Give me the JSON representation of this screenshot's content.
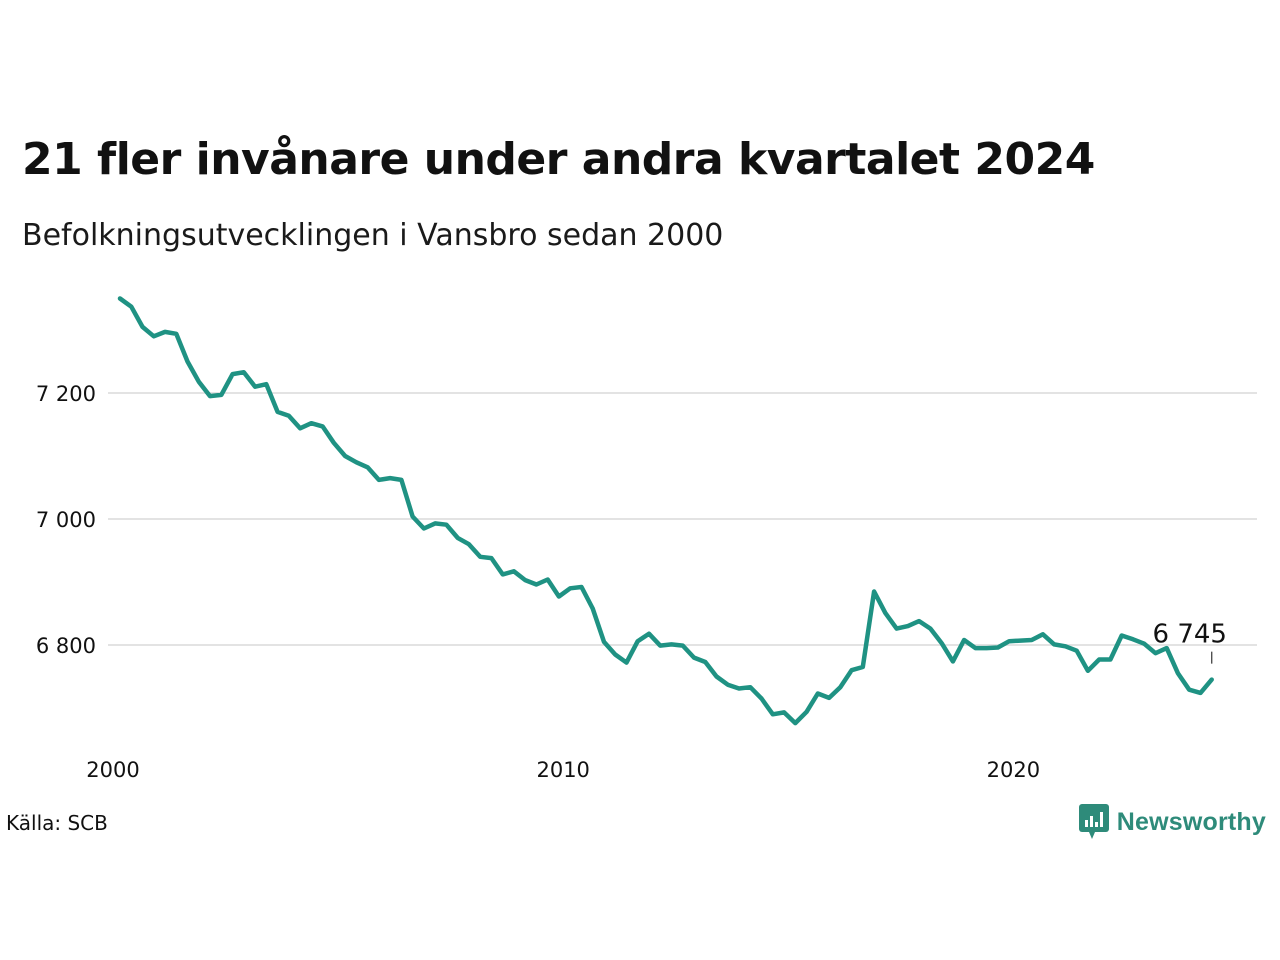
{
  "title": "21 fler invånare under andra kvartalet 2024",
  "subtitle": "Befolkningsutvecklingen i Vansbro sedan 2000",
  "source": "Källa: SCB",
  "brand": {
    "name": "Newsworthy",
    "icon": "newsworthy-logo-icon"
  },
  "colors": {
    "line": "#1f9283",
    "grid": "#e3e3e3",
    "text": "#111111",
    "brand": "#2e8b7a"
  },
  "chart_data": {
    "type": "line",
    "title": "21 fler invånare under andra kvartalet 2024",
    "subtitle": "Befolkningsutvecklingen i Vansbro sedan 2000",
    "xlabel": "",
    "ylabel": "",
    "x_ticks": [
      2000,
      2010,
      2020
    ],
    "x_tick_labels": [
      "2000",
      "2010",
      "2020"
    ],
    "y_ticks": [
      6800,
      7000,
      7200
    ],
    "y_tick_labels": [
      "6 800",
      "7 000",
      "7 200"
    ],
    "xlim": [
      2000.0,
      2024.5
    ],
    "ylim": [
      6650,
      7350
    ],
    "grid": true,
    "annotation": {
      "x": 2024.25,
      "y": 6745,
      "label": "6 745"
    },
    "series": [
      {
        "x": [
          2000.0,
          2000.25,
          2000.5,
          2000.75,
          2001.0,
          2001.25,
          2001.5,
          2001.75,
          2002.0,
          2002.25,
          2002.5,
          2002.75,
          2003.0,
          2003.25,
          2003.5,
          2003.75,
          2004.0,
          2004.25,
          2004.5,
          2004.75,
          2005.0,
          2005.25,
          2005.5,
          2005.75,
          2006.0,
          2006.25,
          2006.5,
          2006.75,
          2007.0,
          2007.25,
          2007.5,
          2007.75,
          2008.0,
          2008.25,
          2008.5,
          2008.75,
          2009.0,
          2009.25,
          2009.5,
          2009.75,
          2010.0,
          2010.25,
          2010.5,
          2010.75,
          2011.0,
          2011.25,
          2011.5,
          2011.75,
          2012.0,
          2012.25,
          2012.5,
          2012.75,
          2013.0,
          2013.25,
          2013.5,
          2013.75,
          2014.0,
          2014.25,
          2014.5,
          2014.75,
          2015.0,
          2015.25,
          2015.5,
          2015.75,
          2016.0,
          2016.25,
          2016.5,
          2016.75,
          2017.0,
          2017.25,
          2017.5,
          2017.75,
          2018.0,
          2018.25,
          2018.5,
          2018.75,
          2019.0,
          2019.25,
          2019.5,
          2019.75,
          2020.0,
          2020.25,
          2020.5,
          2020.75,
          2021.0,
          2021.25,
          2021.5,
          2021.75,
          2022.0,
          2022.25,
          2022.5,
          2022.75,
          2023.0,
          2023.25,
          2023.5,
          2023.75,
          2024.0,
          2024.25
        ],
        "values": [
          7350,
          7337,
          7305,
          7290,
          7297,
          7294,
          7250,
          7218,
          7195,
          7197,
          7230,
          7233,
          7210,
          7214,
          7170,
          7164,
          7144,
          7152,
          7147,
          7121,
          7100,
          7090,
          7082,
          7062,
          7065,
          7062,
          7004,
          6985,
          6993,
          6991,
          6970,
          6960,
          6940,
          6938,
          6912,
          6917,
          6903,
          6896,
          6904,
          6877,
          6890,
          6892,
          6858,
          6805,
          6785,
          6772,
          6806,
          6818,
          6799,
          6801,
          6799,
          6780,
          6773,
          6750,
          6737,
          6731,
          6733,
          6715,
          6690,
          6693,
          6676,
          6694,
          6723,
          6716,
          6733,
          6760,
          6765,
          6885,
          6851,
          6826,
          6830,
          6838,
          6826,
          6803,
          6774,
          6808,
          6795,
          6795,
          6796,
          6806,
          6807,
          6808,
          6817,
          6801,
          6798,
          6791,
          6759,
          6777,
          6777,
          6815,
          6809,
          6802,
          6787,
          6795,
          6755,
          6729,
          6724,
          6745
        ]
      }
    ]
  }
}
